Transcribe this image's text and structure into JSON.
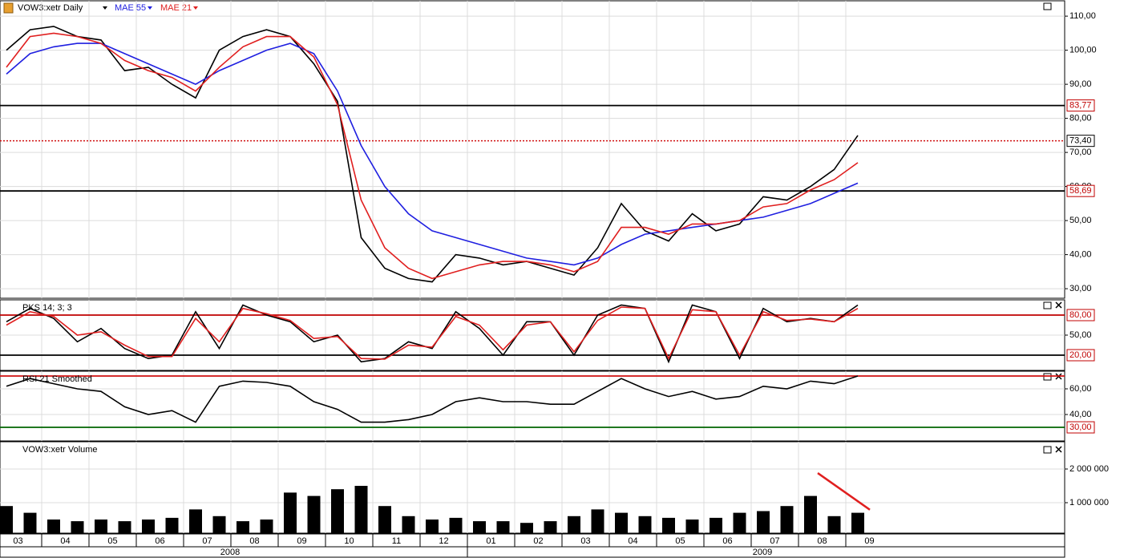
{
  "chart_data": [
    {
      "type": "line",
      "categories": [
        "03",
        null,
        "04",
        null,
        "05",
        null,
        "06",
        null,
        "07",
        null,
        "08",
        null,
        "09",
        null,
        "10",
        null,
        "11",
        null,
        "12",
        null,
        "01",
        null,
        "02",
        null,
        "03",
        null,
        "04",
        null,
        "05",
        null,
        "06",
        null,
        "07",
        null,
        "08",
        null,
        "09"
      ],
      "years": [
        "2008",
        "2009"
      ],
      "series": [
        {
          "name": "VOW3:xetr Daily",
          "color": "#000000",
          "values": [
            100,
            106,
            107,
            104,
            103,
            94,
            95,
            90,
            86,
            100,
            104,
            106,
            104,
            96,
            85,
            45,
            36,
            33,
            32,
            40,
            39,
            37,
            38,
            36,
            34,
            42,
            55,
            47,
            44,
            52,
            47,
            49,
            57,
            56,
            60,
            65,
            75
          ]
        },
        {
          "name": "MAE 55",
          "color": "#1f1fe0",
          "values": [
            93,
            99,
            101,
            102,
            102,
            99,
            96,
            93,
            90,
            94,
            97,
            100,
            102,
            99,
            88,
            72,
            60,
            52,
            47,
            45,
            43,
            41,
            39,
            38,
            37,
            39,
            43,
            46,
            47,
            48,
            49,
            50,
            51,
            53,
            55,
            58,
            61
          ]
        },
        {
          "name": "MAE 21",
          "color": "#e01f1f",
          "values": [
            95,
            104,
            105,
            104,
            102,
            97,
            94,
            92,
            88,
            95,
            101,
            104,
            104,
            98,
            84,
            56,
            42,
            36,
            33,
            35,
            37,
            38,
            38,
            37,
            35,
            38,
            48,
            48,
            46,
            49,
            49,
            50,
            54,
            55,
            59,
            62,
            67
          ]
        }
      ],
      "ylim": [
        27.2,
        114.5
      ],
      "yticks": [
        {
          "value": 30,
          "label": "30,00"
        },
        {
          "value": 40,
          "label": "40,00"
        },
        {
          "value": 50,
          "label": "50,00"
        },
        {
          "value": 60,
          "label": "60,00"
        },
        {
          "value": 70,
          "label": "70,00"
        },
        {
          "value": 80,
          "label": "80,00"
        },
        {
          "value": 90,
          "label": "90,00"
        },
        {
          "value": 100,
          "label": "100,00"
        },
        {
          "value": 110,
          "label": "110,00"
        }
      ],
      "hlines": [
        {
          "value": 83.77,
          "label": "83,77",
          "color": "#000000",
          "label_color": "#c00000"
        },
        {
          "value": 73.4,
          "label": "73,40",
          "color": "#d01010",
          "dashed": true,
          "label_color": "#000000"
        },
        {
          "value": 58.69,
          "label": "58,69",
          "color": "#000000",
          "label_color": "#c00000"
        }
      ],
      "grid": true
    },
    {
      "type": "line",
      "title": "PKS 14; 3; 3",
      "series": [
        {
          "color": "#000000",
          "values": [
            70,
            90,
            75,
            40,
            60,
            30,
            15,
            20,
            85,
            30,
            95,
            80,
            70,
            40,
            50,
            10,
            15,
            40,
            30,
            85,
            60,
            20,
            70,
            70,
            20,
            80,
            95,
            90,
            10,
            95,
            85,
            15,
            90,
            70,
            75,
            70,
            95
          ]
        },
        {
          "color": "#e01f1f",
          "values": [
            65,
            85,
            78,
            50,
            55,
            35,
            18,
            18,
            75,
            40,
            90,
            82,
            72,
            45,
            48,
            15,
            14,
            35,
            32,
            78,
            65,
            28,
            65,
            70,
            25,
            72,
            92,
            90,
            15,
            88,
            85,
            20,
            85,
            72,
            74,
            70,
            90
          ]
        }
      ],
      "ylim": [
        -2.8,
        102.8
      ],
      "yticks": [
        {
          "value": 50,
          "label": "50,00"
        }
      ],
      "hlines": [
        {
          "value": 80,
          "label": "80,00",
          "color": "#c00000",
          "label_color": "#c00000"
        },
        {
          "value": 20,
          "label": "20,00",
          "color": "#000000",
          "label_color": "#c00000"
        }
      ],
      "grid": true
    },
    {
      "type": "line",
      "title": "RSI 21 Smoothed",
      "series": [
        {
          "color": "#000000",
          "values": [
            62,
            68,
            64,
            60,
            58,
            46,
            40,
            43,
            34,
            62,
            66,
            65,
            62,
            50,
            44,
            34,
            34,
            36,
            40,
            50,
            53,
            50,
            50,
            48,
            48,
            58,
            68,
            60,
            54,
            58,
            52,
            54,
            62,
            60,
            66,
            64,
            70
          ]
        }
      ],
      "ylim": [
        19.4,
        73.75
      ],
      "yticks": [
        {
          "value": 40,
          "label": "40,00"
        },
        {
          "value": 60,
          "label": "60,00"
        }
      ],
      "hlines": [
        {
          "value": 70,
          "color": "#d01010"
        },
        {
          "value": 30,
          "label": "30,00",
          "color": "#006400",
          "label_color": "#c00000"
        }
      ],
      "grid": true
    },
    {
      "type": "bar",
      "title": "VOW3:xetr Volume",
      "color": "#000000",
      "values": [
        900000,
        700000,
        500000,
        450000,
        500000,
        450000,
        500000,
        550000,
        800000,
        600000,
        450000,
        500000,
        1300000,
        1200000,
        1400000,
        1500000,
        900000,
        600000,
        500000,
        550000,
        450000,
        450000,
        400000,
        450000,
        600000,
        800000,
        700000,
        600000,
        550000,
        500000,
        550000,
        700000,
        750000,
        900000,
        1200000,
        600000,
        700000
      ],
      "trendline": [
        1880000,
        790000
      ],
      "ylim": [
        95000,
        2810000
      ],
      "yticks": [
        {
          "value": 1000000,
          "label": "1 000 000"
        },
        {
          "value": 2000000,
          "label": "2 000 000"
        }
      ],
      "grid": true
    }
  ]
}
